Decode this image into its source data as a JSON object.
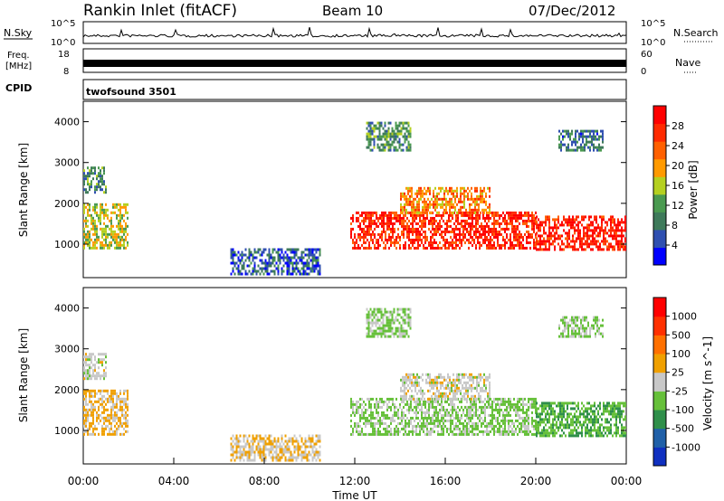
{
  "header": {
    "station": "Rankin Inlet (fitACF)",
    "beam": "Beam 10",
    "date": "07/Dec/2012"
  },
  "nsky_panel": {
    "left_label": "N.Sky",
    "left_ticks": [
      "10^5",
      "10^0"
    ],
    "right_label": "N.Search",
    "right_ticks": [
      "10^5",
      "10^0"
    ]
  },
  "freq_panel": {
    "left_label_1": "Freq.",
    "left_label_2": "[MHz]",
    "left_ticks": [
      "18",
      "8"
    ],
    "right_label": "Nave",
    "right_ticks": [
      "60",
      "0"
    ]
  },
  "cpid_panel": {
    "label": "CPID",
    "value": "twofsound 3501"
  },
  "colors": {
    "power_scale": [
      "#0000ff",
      "#2f4fb0",
      "#3e7a5a",
      "#4a9a50",
      "#b5d020",
      "#ff9a00",
      "#ff6000",
      "#ff2a00",
      "#ff0000"
    ],
    "velocity_scale": [
      "#1030c0",
      "#2060a8",
      "#2f8f4a",
      "#66c03a",
      "#c8c8c8",
      "#f0a000",
      "#ff7000",
      "#ff3000",
      "#ff0000"
    ]
  },
  "chart_data": [
    {
      "type": "heatmap",
      "title": "",
      "xlabel": "",
      "ylabel": "Slant Range [km]",
      "xlim": [
        0,
        24
      ],
      "ylim": [
        180,
        4500
      ],
      "y_ticks": [
        "1000",
        "2000",
        "3000",
        "4000"
      ],
      "colorbar": {
        "label": "Power [dB]",
        "ticks": [
          "28",
          "24",
          "20",
          "16",
          "12",
          "8",
          "4"
        ],
        "range": [
          0,
          30
        ]
      },
      "regions": [
        {
          "t0": 0.0,
          "t1": 2.0,
          "r0": 900,
          "r1": 2000,
          "value": 15
        },
        {
          "t0": 0.0,
          "t1": 1.0,
          "r0": 2300,
          "r1": 2900,
          "value": 10
        },
        {
          "t0": 6.5,
          "t1": 10.5,
          "r0": 300,
          "r1": 900,
          "value": 6
        },
        {
          "t0": 11.8,
          "t1": 20.0,
          "r0": 900,
          "r1": 1800,
          "value": 26
        },
        {
          "t0": 14.0,
          "t1": 18.0,
          "r0": 1800,
          "r1": 2400,
          "value": 20
        },
        {
          "t0": 20.0,
          "t1": 24.0,
          "r0": 900,
          "r1": 1700,
          "value": 27
        },
        {
          "t0": 21.0,
          "t1": 23.0,
          "r0": 3300,
          "r1": 3800,
          "value": 8
        },
        {
          "t0": 12.5,
          "t1": 14.5,
          "r0": 3300,
          "r1": 4000,
          "value": 10
        }
      ]
    },
    {
      "type": "heatmap",
      "title": "",
      "xlabel": "Time UT",
      "ylabel": "Slant Range [km]",
      "xlim": [
        0,
        24
      ],
      "ylim": [
        180,
        4500
      ],
      "x_ticks": [
        "00:00",
        "04:00",
        "08:00",
        "12:00",
        "16:00",
        "20:00",
        "00:00"
      ],
      "y_ticks": [
        "1000",
        "2000",
        "3000",
        "4000"
      ],
      "colorbar": {
        "label": "Velocity [m s^-1]",
        "ticks": [
          "1000",
          "500",
          "100",
          "25",
          "-25",
          "-100",
          "-500",
          "-1000"
        ],
        "range": [
          -1000,
          1000
        ]
      },
      "regions": [
        {
          "t0": 0.0,
          "t1": 2.0,
          "r0": 900,
          "r1": 2000,
          "value": 150
        },
        {
          "t0": 0.0,
          "t1": 1.0,
          "r0": 2300,
          "r1": 2900,
          "value": 0
        },
        {
          "t0": 6.5,
          "t1": 10.5,
          "r0": 300,
          "r1": 900,
          "value": 100
        },
        {
          "t0": 11.8,
          "t1": 20.0,
          "r0": 900,
          "r1": 1800,
          "value": -150
        },
        {
          "t0": 14.0,
          "t1": 18.0,
          "r0": 1800,
          "r1": 2400,
          "value": 0
        },
        {
          "t0": 20.0,
          "t1": 24.0,
          "r0": 900,
          "r1": 1700,
          "value": -300
        },
        {
          "t0": 21.0,
          "t1": 23.0,
          "r0": 3300,
          "r1": 3800,
          "value": -150
        },
        {
          "t0": 12.5,
          "t1": 14.5,
          "r0": 3300,
          "r1": 4000,
          "value": -150
        }
      ]
    }
  ]
}
